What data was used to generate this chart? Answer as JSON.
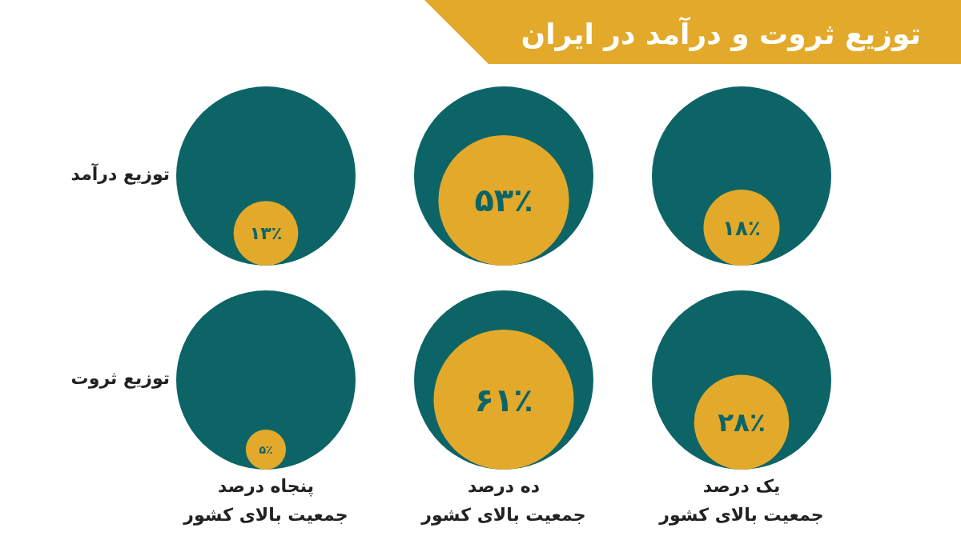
{
  "chart_data": {
    "type": "other",
    "title": "توزیع ثروت و درآمد در ایران",
    "categories": [
      "پنجاه درصد\nجمعیت بالای کشور",
      "ده درصد\nجمعیت بالای کشور",
      "یک درصد\nجمعیت بالای کشور"
    ],
    "annotations": [
      "توزیع درآمد",
      "توزیع ثروت"
    ],
    "series": [
      {
        "color": "#e3a92a",
        "values": [
          13,
          53,
          18
        ],
        "value_labels": [
          "۱۳٪",
          "۵۳٪",
          "۱۸٪"
        ]
      },
      {
        "color": "#e3a92a",
        "values": [
          5,
          61,
          28
        ],
        "value_labels": [
          "۵٪",
          "۶۱٪",
          "۲۸٪"
        ]
      }
    ]
  }
}
